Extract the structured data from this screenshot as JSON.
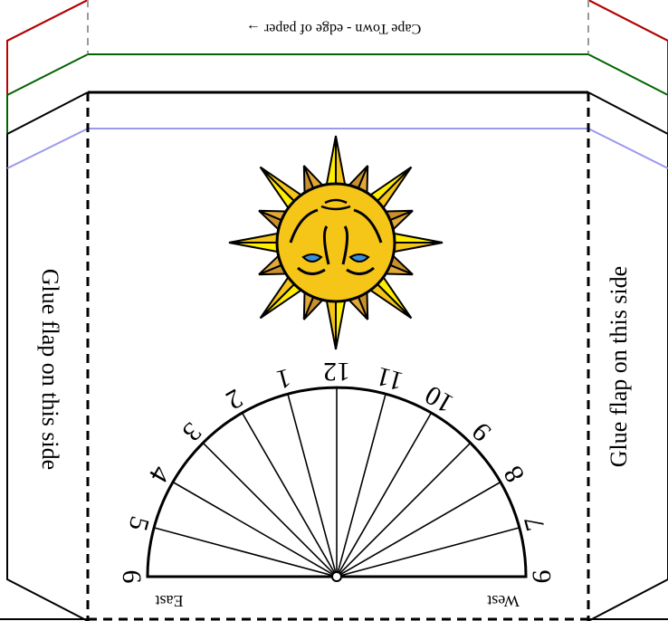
{
  "edge_label": "Cape Town - edge of paper →",
  "flap_left_label": "Glue flap on this side",
  "flap_right_label": "Glue flap on this side",
  "dial": {
    "east_label": "East",
    "west_label": "West",
    "hours": [
      {
        "label": "6",
        "angle": 0
      },
      {
        "label": "5",
        "angle": 15
      },
      {
        "label": "4",
        "angle": 30
      },
      {
        "label": "3",
        "angle": 45
      },
      {
        "label": "2",
        "angle": 60
      },
      {
        "label": "1",
        "angle": 75
      },
      {
        "label": "12",
        "angle": 90
      },
      {
        "label": "11",
        "angle": 105
      },
      {
        "label": "10",
        "angle": 120
      },
      {
        "label": "9",
        "angle": 135
      },
      {
        "label": "8",
        "angle": 150
      },
      {
        "label": "7",
        "angle": 165
      },
      {
        "label": "6",
        "angle": 180
      }
    ]
  },
  "colors": {
    "red_line": "#c00000",
    "green_line": "#006400",
    "blue_line": "#9999ee",
    "dash_gray": "#999999",
    "sun_yellow": "#f5c518",
    "sun_ray_light": "#ffee00",
    "sun_ray_brown": "#c8902a",
    "eye_blue": "#3a8fd8"
  }
}
